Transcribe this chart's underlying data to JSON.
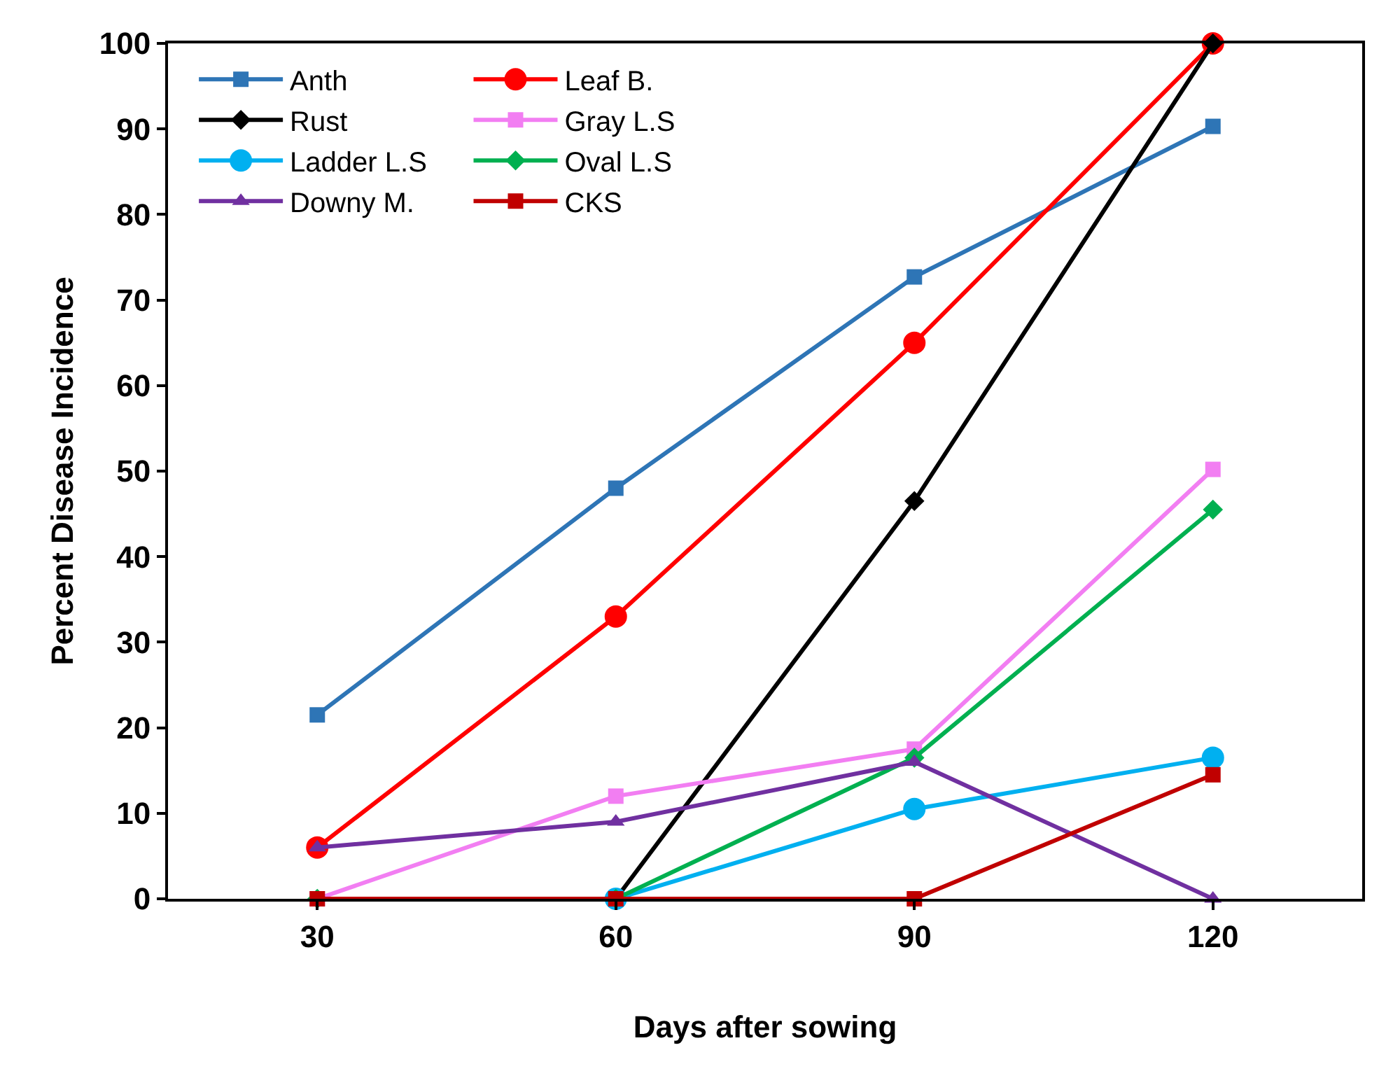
{
  "chart_data": {
    "type": "line",
    "xlabel": "Days after sowing",
    "ylabel": "Percent Disease Incidence",
    "categories": [
      "30",
      "60",
      "90",
      "120"
    ],
    "series": [
      {
        "name": "Anth",
        "color": "#2e75b6",
        "marker": "square",
        "values": [
          21.5,
          48,
          72.7,
          90.3
        ]
      },
      {
        "name": "Leaf B.",
        "color": "#ff0000",
        "marker": "circle",
        "values": [
          6,
          33,
          65,
          100
        ]
      },
      {
        "name": "Rust",
        "color": "#000000",
        "marker": "diamond",
        "values": [
          null,
          0,
          46.5,
          100
        ]
      },
      {
        "name": "Gray L.S",
        "color": "#f27ef2",
        "marker": "square",
        "values": [
          0,
          12,
          17.5,
          50.2
        ]
      },
      {
        "name": "Ladder L.S",
        "color": "#00b0f0",
        "marker": "circle",
        "values": [
          null,
          0,
          10.5,
          16.5
        ]
      },
      {
        "name": "Oval L.S",
        "color": "#00b050",
        "marker": "diamond",
        "values": [
          0,
          0,
          16.5,
          45.5
        ]
      },
      {
        "name": "Downy M.",
        "color": "#7030a0",
        "marker": "triangle",
        "values": [
          6,
          9,
          16,
          0
        ]
      },
      {
        "name": "CKS",
        "color": "#c00000",
        "marker": "square",
        "values": [
          0,
          0,
          0,
          14.5
        ]
      }
    ],
    "ylim": [
      0,
      100
    ],
    "yticks": [
      0,
      10,
      20,
      30,
      40,
      50,
      60,
      70,
      80,
      90,
      100
    ],
    "grid": false,
    "legend": "top left",
    "line_style": "solid"
  }
}
